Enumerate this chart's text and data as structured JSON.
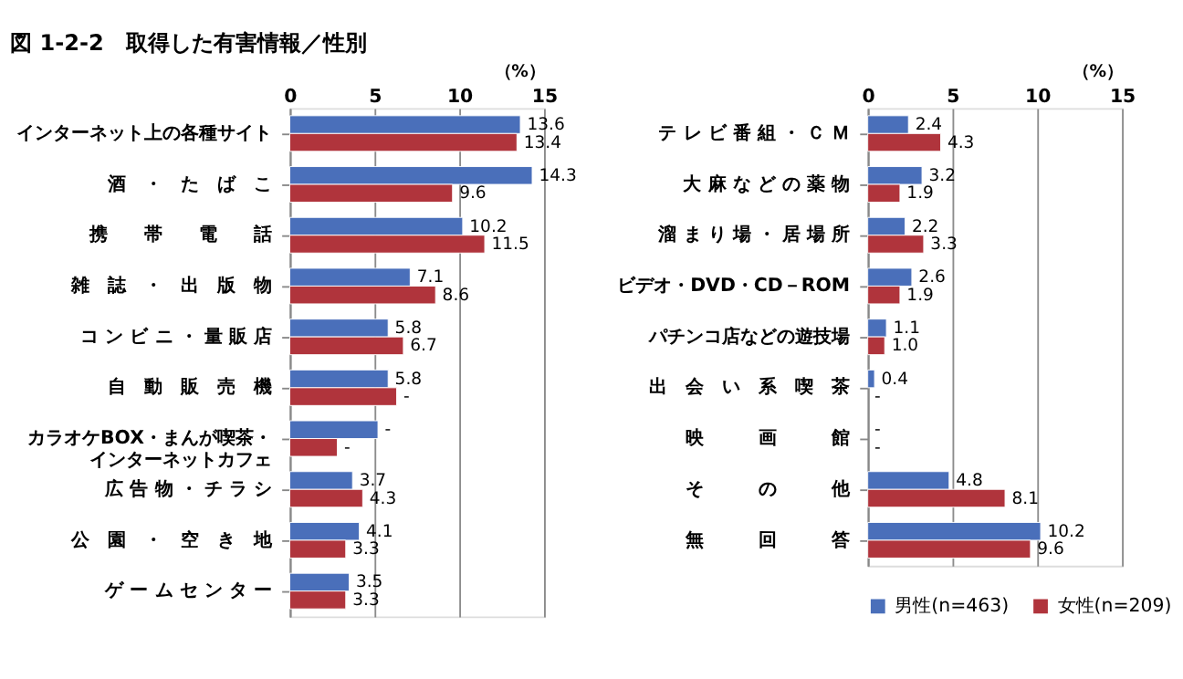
{
  "chart_data": [
    {
      "type": "bar",
      "orientation": "horizontal",
      "title": "図 1-2-2　取得した有害情報／性別",
      "xlabel": "（%）",
      "categories": [
        "インターネット上の各種サイト",
        "酒　・　た　ば　こ",
        "携　　帯　　電　　話",
        "雑　誌　・　出　版　物",
        "コ ン ビ ニ ・ 量 販 店",
        "自　動　販　売　機",
        "カラオケBOX・まんが喫茶・インターネットカフェ",
        "広 告 物 ・ チ ラ シ",
        "公　園　・　空　き　地",
        "ゲ ー ム セ ン タ ー"
      ],
      "series": [
        {
          "color": "#4a6fba",
          "values": [
            13.6,
            14.3,
            10.2,
            7.1,
            5.8,
            5.8,
            5.2,
            3.7,
            4.1,
            3.5
          ],
          "value_labels": [
            "13.6",
            "14.3",
            "10.2",
            "7.1",
            "5.8",
            "5.8",
            "-",
            "3.7",
            "4.1",
            "3.5"
          ]
        },
        {
          "color": "#b0343c",
          "values": [
            13.4,
            9.6,
            11.5,
            8.6,
            6.7,
            6.3,
            2.8,
            4.3,
            3.3,
            3.3
          ],
          "value_labels": [
            "13.4",
            "9.6",
            "11.5",
            "8.6",
            "6.7",
            "-",
            "-",
            "4.3",
            "3.3",
            "3.3"
          ]
        }
      ],
      "xlim": [
        0,
        15
      ],
      "xticks": [
        0,
        5,
        10,
        15
      ],
      "grid": "x"
    },
    {
      "type": "bar",
      "orientation": "horizontal",
      "xlabel": "（%）",
      "categories": [
        "テ レ ビ 番 組 ・ Ｃ Ｍ",
        "大 麻 な ど の 薬 物",
        "溜 ま り 場 ・ 居 場 所",
        "ビデオ・DVD・CD－ROM",
        "パチンコ店などの遊技場",
        "出　会　い　系　喫　茶",
        "映　　　画　　　館",
        "そ　　　の　　　他",
        "無　　　回　　　答"
      ],
      "series": [
        {
          "name": "男性(n=463)",
          "color": "#4a6fba",
          "values": [
            2.4,
            3.2,
            2.2,
            2.6,
            1.1,
            0.4,
            null,
            4.8,
            10.2
          ],
          "value_labels": [
            "2.4",
            "3.2",
            "2.2",
            "2.6",
            "1.1",
            "0.4",
            "-",
            "4.8",
            "10.2"
          ]
        },
        {
          "name": "女性(n=209)",
          "color": "#b0343c",
          "values": [
            4.3,
            1.9,
            3.3,
            1.9,
            1.0,
            null,
            null,
            8.1,
            9.6
          ],
          "value_labels": [
            "4.3",
            "1.9",
            "3.3",
            "1.9",
            "1.0",
            "-",
            "-",
            "8.1",
            "9.6"
          ]
        }
      ],
      "xlim": [
        0,
        15
      ],
      "xticks": [
        0,
        5,
        10,
        15
      ],
      "grid": "x",
      "legend": "bottom right"
    }
  ]
}
